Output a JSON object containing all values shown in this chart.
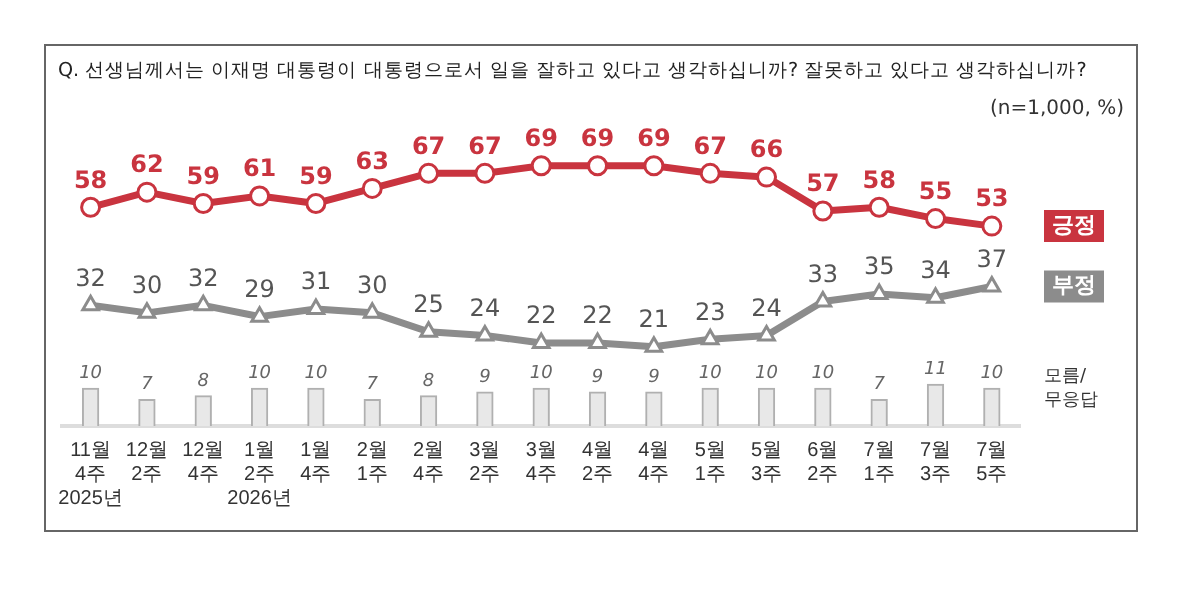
{
  "chart_data": {
    "type": "line",
    "title": "Q. 선생님께서는 이재명 대통령이 대통령으로서 일을 잘하고 있다고 생각하십니까? 잘못하고 있다고 생각하십니까?",
    "annotations": [
      "(n=1,000, %)"
    ],
    "categories": [
      "11월\n4주\n2025년",
      "12월\n2주",
      "12월\n4주",
      "1월\n2주\n2026년",
      "1월\n4주",
      "2월\n1주",
      "2월\n4주",
      "3월\n2주",
      "3월\n4주",
      "4월\n2주",
      "4월\n4주",
      "5월\n1주",
      "5월\n3주",
      "6월\n2주",
      "7월\n1주",
      "7월\n3주",
      "7월\n5주"
    ],
    "series": [
      {
        "name": "긍정",
        "marker": "circle",
        "color": "#c9343f",
        "values": [
          58,
          62,
          59,
          61,
          59,
          63,
          67,
          67,
          69,
          69,
          69,
          67,
          66,
          57,
          58,
          55,
          53
        ]
      },
      {
        "name": "부정",
        "marker": "triangle",
        "color": "#8c8c8c",
        "values": [
          32,
          30,
          32,
          29,
          31,
          30,
          25,
          24,
          22,
          22,
          21,
          23,
          24,
          33,
          35,
          34,
          37
        ]
      },
      {
        "name": "모름/\n무응답",
        "type": "bar",
        "color": "#e8e8e8",
        "values": [
          10,
          7,
          8,
          10,
          10,
          7,
          8,
          9,
          10,
          9,
          9,
          10,
          10,
          10,
          7,
          11,
          10
        ]
      }
    ],
    "tick_labels": "x",
    "data_labels": true,
    "legend": false,
    "grid": false
  }
}
